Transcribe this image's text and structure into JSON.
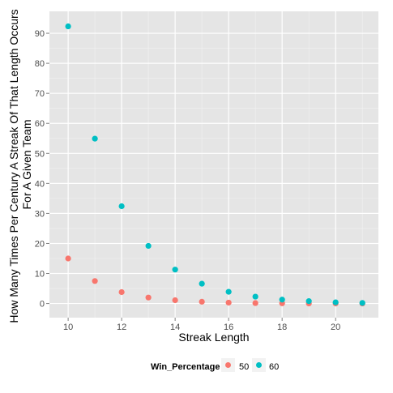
{
  "chart_data": {
    "type": "scatter",
    "title": "",
    "xlabel": "Streak Length",
    "ylabel_lines": [
      "How Many Times Per Century A Streak Of That Length Occurs",
      "For A Given Team"
    ],
    "xlim": [
      9.3,
      21.6
    ],
    "ylim": [
      -4.7,
      97.3
    ],
    "x_ticks": [
      10,
      12,
      14,
      16,
      18,
      20
    ],
    "y_ticks": [
      0,
      10,
      20,
      30,
      40,
      50,
      60,
      70,
      80,
      90
    ],
    "grid": true,
    "legend": {
      "title": "Win_Percentage",
      "position": "bottom"
    },
    "series": [
      {
        "name": "50",
        "color": "#F8766D",
        "x": [
          10,
          11,
          12,
          13,
          14,
          15,
          16,
          17,
          18,
          19,
          20,
          21
        ],
        "y": [
          15.0,
          7.5,
          3.8,
          2.0,
          1.1,
          0.6,
          0.3,
          0.15,
          0.08,
          0.04,
          0.02,
          0.01
        ]
      },
      {
        "name": "60",
        "color": "#00BFC4",
        "x": [
          10,
          11,
          12,
          13,
          14,
          15,
          16,
          17,
          18,
          19,
          20,
          21
        ],
        "y": [
          92.3,
          54.9,
          32.4,
          19.2,
          11.3,
          6.6,
          3.9,
          2.3,
          1.3,
          0.8,
          0.4,
          0.2
        ]
      }
    ]
  }
}
